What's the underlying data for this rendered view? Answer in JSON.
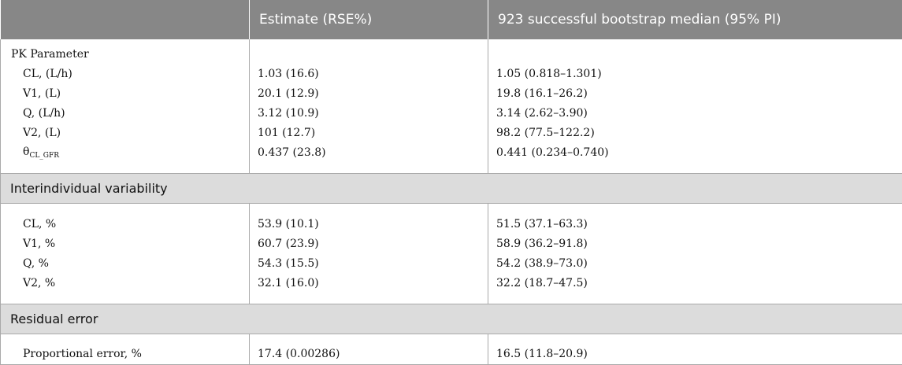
{
  "header": {
    "col1": "",
    "col2": "Estimate (RSE%)",
    "col3": "923 successful bootstrap median (95% PI)"
  },
  "pk": {
    "title": "PK Parameter",
    "rows": [
      {
        "param": "CL, (L/h)",
        "estimate": "1.03 (16.6)",
        "bootstrap": "1.05 (0.818–1.301)"
      },
      {
        "param": "V1, (L)",
        "estimate": "20.1 (12.9)",
        "bootstrap": "19.8 (16.1–26.2)"
      },
      {
        "param": "Q, (L/h)",
        "estimate": "3.12 (10.9)",
        "bootstrap": "3.14 (2.62–3.90)"
      },
      {
        "param": "V2, (L)",
        "estimate": "101 (12.7)",
        "bootstrap": "98.2 (77.5–122.2)"
      },
      {
        "param_main": "θ",
        "param_sub": "CL_GFR",
        "estimate": "0.437 (23.8)",
        "bootstrap": "0.441 (0.234–0.740)"
      }
    ]
  },
  "iiv": {
    "title": "Interindividual variability",
    "rows": [
      {
        "param": "CL, %",
        "estimate": "53.9 (10.1)",
        "bootstrap": "51.5 (37.1–63.3)"
      },
      {
        "param": "V1, %",
        "estimate": "60.7 (23.9)",
        "bootstrap": "58.9 (36.2–91.8)"
      },
      {
        "param": "Q, %",
        "estimate": "54.3 (15.5)",
        "bootstrap": "54.2 (38.9–73.0)"
      },
      {
        "param": "V2, %",
        "estimate": "32.1 (16.0)",
        "bootstrap": "32.2 (18.7–47.5)"
      }
    ]
  },
  "residual": {
    "title": "Residual error",
    "rows": [
      {
        "param": "Proportional error, %",
        "estimate": "17.4 (0.00286)",
        "bootstrap": "16.5 (11.8–20.9)"
      }
    ]
  }
}
